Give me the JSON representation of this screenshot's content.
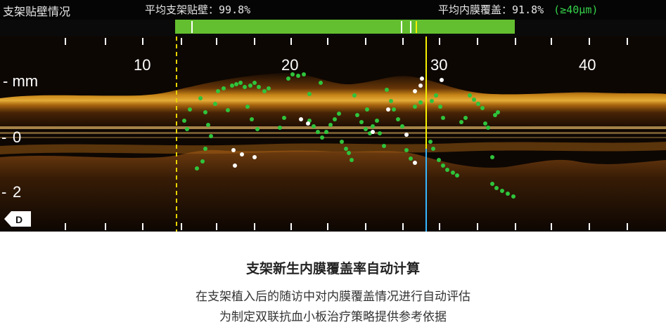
{
  "header": {
    "title": "支架贴壁情况",
    "avg_apposition_label": "平均支架贴壁：",
    "avg_apposition_value": "99.8%",
    "avg_coverage_label": "平均内膜覆盖：",
    "avg_coverage_value": "91.8%",
    "threshold": "(≥40μm)"
  },
  "coverage_bar": {
    "color": "#63bf2f"
  },
  "oct_view": {
    "unit_label": "- mm",
    "x_ticks": [
      "10",
      "20",
      "30",
      "40"
    ],
    "y_ticks": [
      "0",
      "2"
    ],
    "y_tick_prefix": "-",
    "direction_badge": "D",
    "marker_colors": {
      "covered": "#2fc43c",
      "uncovered": "#ffffff",
      "frame_line": "#f5f000",
      "cursor_line": "#36b7ff",
      "boundary_line": "#e8d400"
    }
  },
  "caption": {
    "title": "支架新生内膜覆盖率自动计算",
    "line1": "在支架植入后的随访中对内膜覆盖情况进行自动评估",
    "line2": "为制定双联抗血小板治疗策略提供参考依据"
  }
}
